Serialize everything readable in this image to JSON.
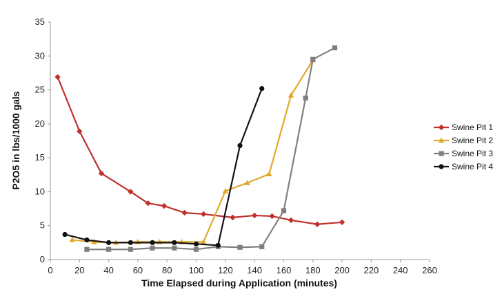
{
  "chart_data": {
    "type": "line",
    "title": "",
    "xlabel": "Time Elapsed during Application (minutes)",
    "ylabel": "P2O5 in lbs/1000 gals",
    "xlim": [
      0,
      260
    ],
    "ylim": [
      0,
      35
    ],
    "xticks": [
      0,
      20,
      40,
      60,
      80,
      100,
      120,
      140,
      160,
      180,
      200,
      220,
      240,
      260
    ],
    "yticks": [
      0,
      5,
      10,
      15,
      20,
      25,
      30,
      35
    ],
    "grid": false,
    "legend_position": "right",
    "series": [
      {
        "name": "Swine Pit 1",
        "color": "#c0302b",
        "marker": "diamond",
        "x": [
          5,
          20,
          35,
          55,
          67,
          78,
          92,
          105,
          125,
          140,
          152,
          165,
          183,
          200
        ],
        "y": [
          26.9,
          18.9,
          12.7,
          10.0,
          8.3,
          7.9,
          6.9,
          6.7,
          6.2,
          6.5,
          6.4,
          5.8,
          5.2,
          5.5
        ]
      },
      {
        "name": "Swine Pit 2",
        "color": "#e0a92a",
        "marker": "triangle",
        "x": [
          15,
          30,
          45,
          60,
          75,
          90,
          105,
          120,
          135,
          150,
          165,
          180
        ],
        "y": [
          2.9,
          2.6,
          2.5,
          2.6,
          2.6,
          2.6,
          2.6,
          10.1,
          11.3,
          12.6,
          24.2,
          29.4
        ]
      },
      {
        "name": "Swine Pit 3",
        "color": "#7f7f7f",
        "marker": "square",
        "x": [
          25,
          40,
          55,
          70,
          85,
          100,
          115,
          130,
          145,
          160,
          175,
          180,
          195
        ],
        "y": [
          1.5,
          1.5,
          1.5,
          1.7,
          1.7,
          1.5,
          1.9,
          1.8,
          1.9,
          7.2,
          23.8,
          29.5,
          31.2
        ]
      },
      {
        "name": "Swine Pit 4",
        "color": "#111111",
        "marker": "circle",
        "x": [
          10,
          25,
          40,
          55,
          70,
          85,
          100,
          115,
          130,
          145
        ],
        "y": [
          3.7,
          2.9,
          2.5,
          2.5,
          2.5,
          2.5,
          2.3,
          2.1,
          16.8,
          25.2
        ]
      }
    ]
  }
}
